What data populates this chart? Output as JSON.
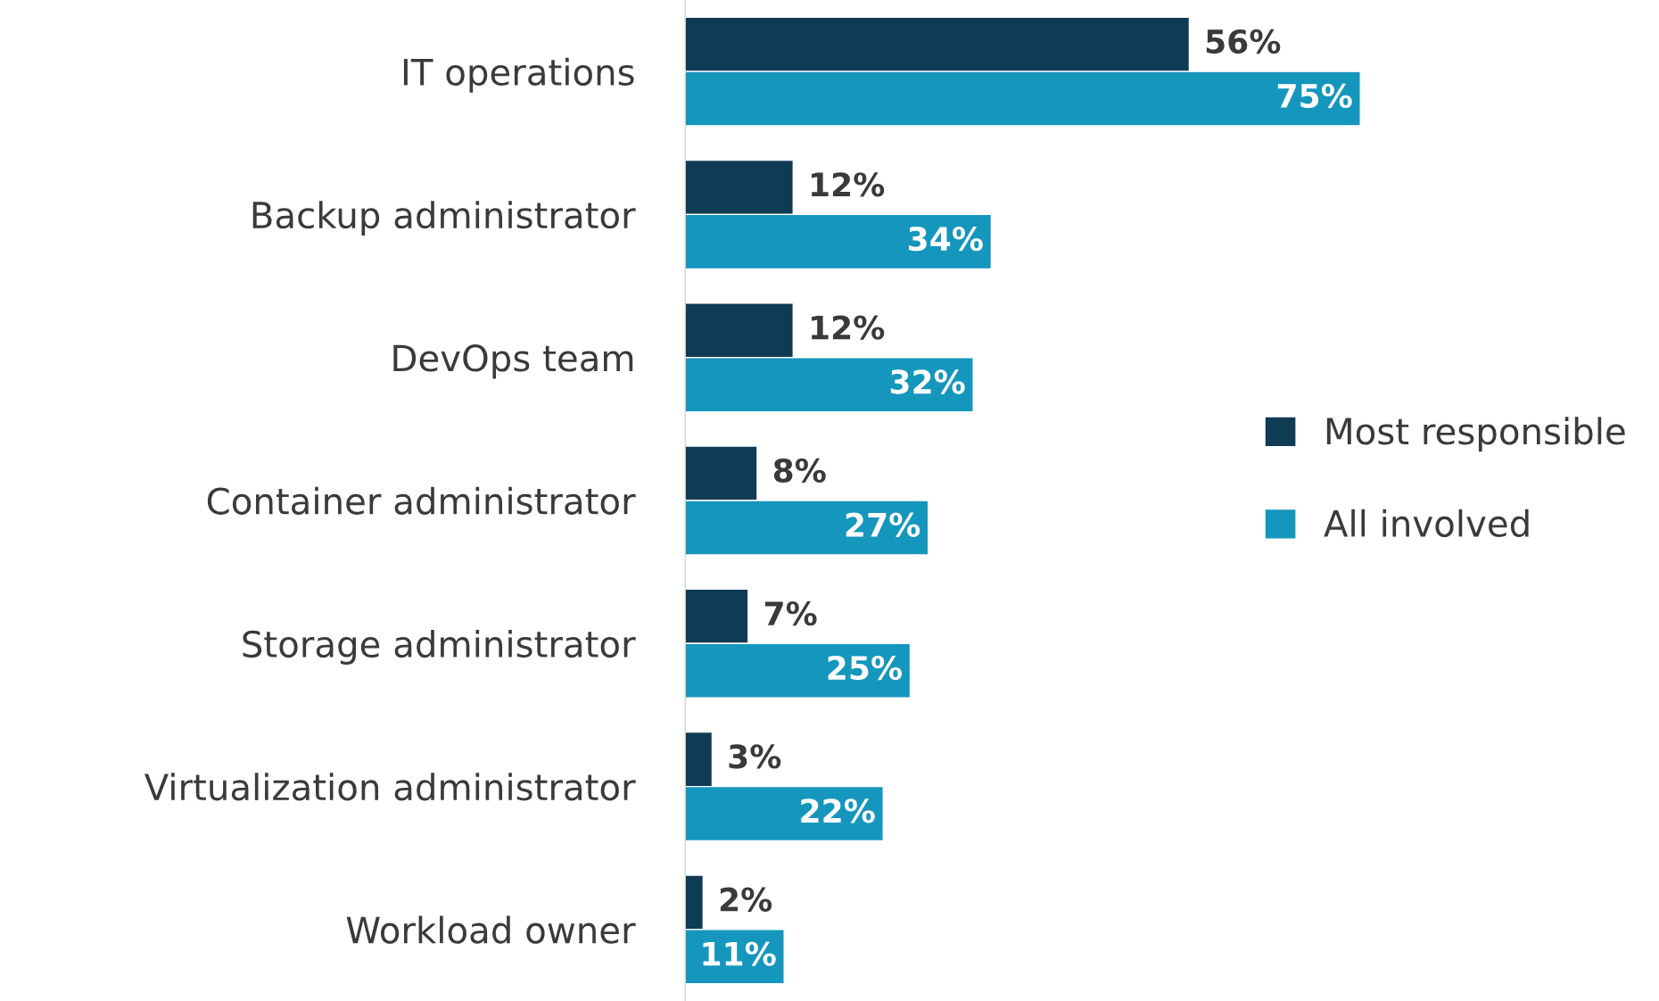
{
  "chart_data": {
    "type": "bar",
    "orientation": "horizontal",
    "categories": [
      "IT operations",
      "Backup administrator",
      "DevOps team",
      "Container administrator",
      "Storage administrator",
      "Virtualization administrator",
      "Workload owner"
    ],
    "series": [
      {
        "name": "Most responsible",
        "color": "#0f3b55",
        "values": [
          56,
          12,
          12,
          8,
          7,
          3,
          2
        ],
        "value_labels": [
          "56%",
          "12%",
          "12%",
          "8%",
          "7%",
          "3%",
          "2%"
        ]
      },
      {
        "name": "All involved",
        "color": "#1596bd",
        "values": [
          75,
          34,
          32,
          27,
          25,
          22,
          11
        ],
        "value_labels": [
          "75%",
          "34%",
          "32%",
          "27%",
          "25%",
          "22%",
          "11%"
        ]
      }
    ],
    "tick_labels": "y",
    "legend": "right",
    "grid": false
  }
}
